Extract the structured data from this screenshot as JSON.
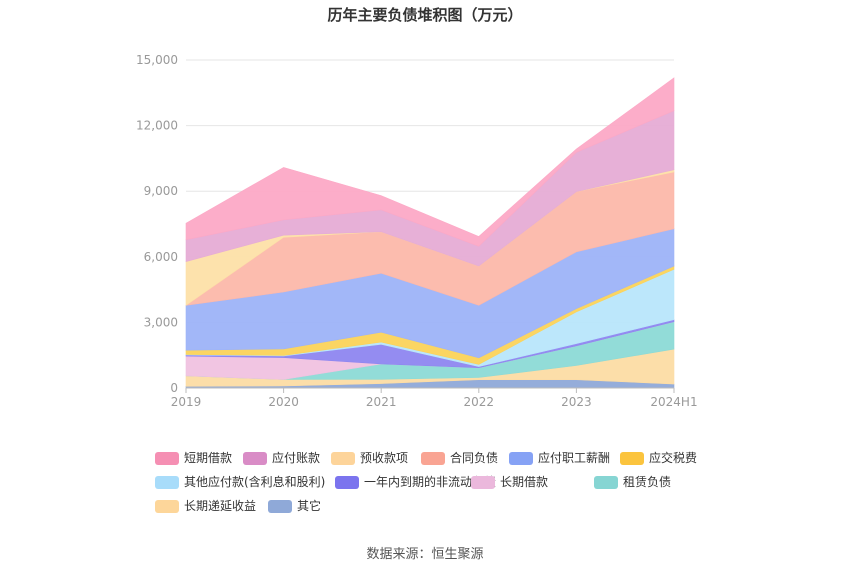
{
  "chart_data": {
    "type": "area",
    "stacked": true,
    "title": "历年主要负债堆积图（万元）",
    "categories": [
      "2019",
      "2020",
      "2021",
      "2022",
      "2023",
      "2024H1"
    ],
    "ylim": [
      0,
      15000
    ],
    "yticks": [
      "0",
      "3,000",
      "6,000",
      "9,000",
      "12,000",
      "15,000"
    ],
    "grid": true,
    "legend_position": "bottom",
    "series": [
      {
        "name": "其它",
        "color": "#8fa9d8",
        "values": [
          80,
          90,
          200,
          380,
          380,
          180
        ]
      },
      {
        "name": "长期递延收益",
        "color": "#fcdca4",
        "values": [
          480,
          300,
          200,
          100,
          650,
          1600
        ]
      },
      {
        "name": "租赁负债",
        "color": "#8cdad6",
        "values": [
          0,
          0,
          700,
          450,
          900,
          1250
        ]
      },
      {
        "name": "长期借款",
        "color": "#f0c2e0",
        "values": [
          900,
          1000,
          0,
          0,
          0,
          0
        ]
      },
      {
        "name": "一年内到期的非流动负债",
        "color": "#8e86f0",
        "values": [
          50,
          80,
          900,
          50,
          100,
          100
        ]
      },
      {
        "name": "其他应付款(含利息和股利)",
        "color": "#b8e6fb",
        "values": [
          20,
          20,
          100,
          100,
          1450,
          2300
        ]
      },
      {
        "name": "应交税费",
        "color": "#fbd35a",
        "values": [
          200,
          300,
          450,
          300,
          150,
          150
        ]
      },
      {
        "name": "应付职工薪酬",
        "color": "#9db3f8",
        "values": [
          2050,
          2600,
          2700,
          2400,
          2600,
          1700
        ]
      },
      {
        "name": "合同负债",
        "color": "#fcb8aa",
        "values": [
          0,
          2500,
          1900,
          1800,
          2750,
          2600
        ]
      },
      {
        "name": "预收款项",
        "color": "#fde0a8",
        "values": [
          2000,
          100,
          0,
          0,
          0,
          100
        ]
      },
      {
        "name": "应付账款",
        "color": "#e6acd5",
        "values": [
          1000,
          700,
          1000,
          900,
          1800,
          2700
        ]
      },
      {
        "name": "短期借款",
        "color": "#fca9c6",
        "values": [
          750,
          2400,
          650,
          450,
          150,
          1500
        ]
      }
    ],
    "legend_order": [
      "短期借款",
      "应付账款",
      "预收款项",
      "合同负债",
      "应付职工薪酬",
      "应交税费",
      "其他应付款(含利息和股利)",
      "一年内到期的非流动负债",
      "长期借款",
      "租赁负债",
      "长期递延收益",
      "其它"
    ],
    "legend_colors": {
      "短期借款": "#f58fb3",
      "应付账款": "#d98cc6",
      "预收款项": "#fdd49a",
      "合同负债": "#f9a493",
      "应付职工薪酬": "#86a2f5",
      "应交税费": "#fbc43e",
      "其他应付款(含利息和股利)": "#a8dcfa",
      "一年内到期的非流动负债": "#7b74ee",
      "长期借款": "#ebb8dc",
      "租赁负债": "#86d5d3",
      "长期递延收益": "#fdd69a",
      "其它": "#8fa9d8"
    }
  },
  "footer": {
    "source": "数据来源：恒生聚源"
  }
}
